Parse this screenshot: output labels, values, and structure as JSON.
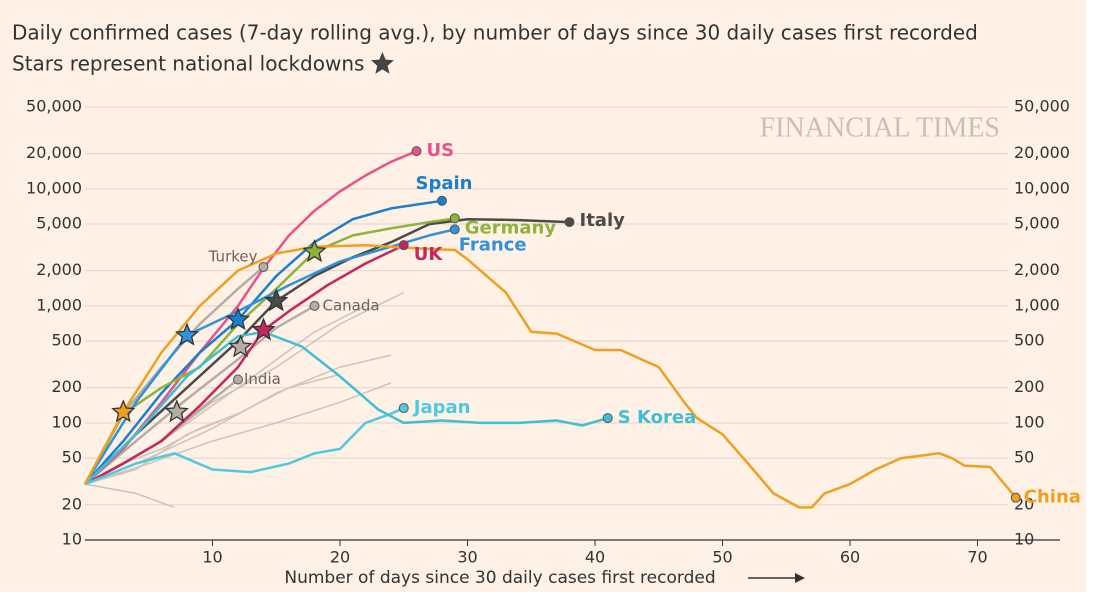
{
  "chart_data": {
    "type": "line",
    "title": "Daily confirmed cases (7-day rolling avg.), by number of days since 30 daily cases first recorded",
    "subtitle": "Stars represent national lockdowns",
    "watermark": "FINANCIAL TIMES",
    "x_label": "Number of days since 30 daily cases first recorded",
    "log_y": true,
    "grid": true,
    "xlim": [
      0,
      76
    ],
    "xticks": [
      10,
      20,
      30,
      40,
      50,
      60,
      70
    ],
    "ylim": [
      10,
      50000
    ],
    "yticks": [
      10,
      20,
      50,
      100,
      200,
      500,
      {
        "value": 1000,
        "label": "1,000"
      },
      {
        "value": 2000,
        "label": "2,000"
      },
      {
        "value": 5000,
        "label": "5,000"
      },
      {
        "value": 10000,
        "label": "10,000"
      },
      {
        "value": 20000,
        "label": "20,000"
      },
      {
        "value": 50000,
        "label": "50,000"
      }
    ],
    "background_series": [
      {
        "color": "#cdc3bb",
        "x": [
          0,
          5,
          10,
          15,
          20,
          25
        ],
        "values": [
          30,
          60,
          150,
          300,
          700,
          1300
        ]
      },
      {
        "color": "#cdc3bb",
        "x": [
          0,
          5,
          10,
          15,
          20,
          24
        ],
        "values": [
          30,
          50,
          90,
          180,
          300,
          380
        ]
      },
      {
        "color": "#cdc3bb",
        "x": [
          0,
          4,
          8,
          12,
          16,
          20
        ],
        "values": [
          30,
          40,
          80,
          120,
          200,
          260
        ]
      },
      {
        "color": "#cdc3bb",
        "x": [
          0,
          3,
          6,
          9,
          12
        ],
        "values": [
          30,
          45,
          60,
          90,
          120
        ]
      },
      {
        "color": "#cdc3bb",
        "x": [
          0,
          4,
          7
        ],
        "values": [
          30,
          25,
          19
        ]
      },
      {
        "color": "#cdc3bb",
        "x": [
          0,
          5,
          10,
          15,
          20,
          24
        ],
        "values": [
          30,
          45,
          70,
          100,
          150,
          220
        ]
      },
      {
        "color": "#cdc3bb",
        "x": [
          0,
          6,
          12,
          18,
          22
        ],
        "values": [
          30,
          70,
          200,
          600,
          1000
        ]
      }
    ],
    "series": [
      {
        "name": "US",
        "color": "#e8528a",
        "x": [
          0,
          3,
          6,
          9,
          12,
          14,
          16,
          18,
          20,
          22,
          24,
          26
        ],
        "values": [
          30,
          60,
          150,
          400,
          1000,
          2100,
          4000,
          6500,
          9500,
          13000,
          17000,
          21000
        ]
      },
      {
        "name": "Spain",
        "color": "#1a7fd0",
        "x": [
          0,
          3,
          6,
          9,
          12,
          15,
          18,
          21,
          24,
          28
        ],
        "values": [
          30,
          70,
          180,
          400,
          760,
          1800,
          3500,
          5500,
          6800,
          7900
        ]
      },
      {
        "name": "Italy",
        "color": "#4a4a4a",
        "x": [
          0,
          4,
          8,
          12,
          15,
          18,
          21,
          24,
          27,
          30,
          34,
          38
        ],
        "values": [
          30,
          80,
          200,
          500,
          1100,
          1800,
          2600,
          3500,
          5000,
          5500,
          5400,
          5200
        ]
      },
      {
        "name": "Germany",
        "color": "#8cb33b",
        "x": [
          0,
          3,
          6,
          9,
          12,
          15,
          18,
          21,
          24,
          27,
          29
        ],
        "values": [
          30,
          120,
          200,
          300,
          700,
          1400,
          2900,
          4000,
          4600,
          5200,
          5600
        ]
      },
      {
        "name": "France",
        "color": "#2e93dc",
        "x": [
          0,
          4,
          8,
          12,
          16,
          20,
          24,
          27,
          29
        ],
        "values": [
          30,
          150,
          560,
          900,
          1500,
          2400,
          3200,
          4000,
          4500
        ]
      },
      {
        "name": "UK",
        "color": "#c4275f",
        "x": [
          0,
          3,
          6,
          9,
          12,
          14,
          16,
          19,
          22,
          25
        ],
        "values": [
          30,
          45,
          70,
          140,
          300,
          620,
          900,
          1500,
          2300,
          3300
        ]
      },
      {
        "name": "Turkey",
        "color": "#b5aca5",
        "x": [
          0,
          3,
          6,
          9,
          12,
          14
        ],
        "values": [
          30,
          120,
          300,
          700,
          1400,
          2150
        ]
      },
      {
        "name": "Canada",
        "color": "#b5aca5",
        "x": [
          0,
          4,
          8,
          12,
          15,
          18
        ],
        "values": [
          30,
          70,
          160,
          350,
          650,
          1000
        ]
      },
      {
        "name": "India",
        "color": "#b5aca5",
        "x": [
          0,
          3,
          6,
          9,
          12
        ],
        "values": [
          30,
          45,
          70,
          130,
          235
        ]
      },
      {
        "name": "Japan",
        "color": "#4fc8e2",
        "x": [
          0,
          4,
          7,
          10,
          13,
          16,
          18,
          20,
          22,
          24,
          25
        ],
        "values": [
          30,
          45,
          55,
          40,
          38,
          45,
          55,
          60,
          100,
          120,
          134
        ]
      },
      {
        "name": "S Korea",
        "color": "#3ebfd6",
        "x": [
          0,
          4,
          8,
          12,
          14,
          17,
          20,
          23,
          25,
          28,
          31,
          34,
          37,
          39,
          41
        ],
        "values": [
          30,
          80,
          250,
          550,
          600,
          450,
          250,
          130,
          100,
          105,
          100,
          100,
          105,
          95,
          110
        ]
      },
      {
        "name": "China",
        "color": "#f0a020",
        "x": [
          0,
          3,
          6,
          9,
          12,
          15,
          18,
          22,
          26,
          29,
          30,
          33,
          35,
          37,
          40,
          42,
          45,
          47,
          48,
          50,
          52,
          54,
          56,
          57,
          58,
          60,
          62,
          64,
          67,
          68,
          69,
          71,
          73
        ],
        "values": [
          30,
          124,
          400,
          1000,
          2000,
          2800,
          3200,
          3300,
          3100,
          3000,
          2500,
          1300,
          600,
          580,
          420,
          420,
          300,
          150,
          110,
          80,
          45,
          25,
          19,
          19,
          25,
          30,
          40,
          50,
          55,
          50,
          43,
          42,
          23
        ]
      }
    ],
    "lockdowns": [
      {
        "x": 3,
        "y": 124,
        "color": "#f0a020"
      },
      {
        "x": 8,
        "y": 560,
        "color": "#2e93dc"
      },
      {
        "x": 7.2,
        "y": 124,
        "color": "#b5aca5"
      },
      {
        "x": 12,
        "y": 760,
        "color": "#1a7fd0"
      },
      {
        "x": 12.2,
        "y": 445,
        "color": "#b5aca5"
      },
      {
        "x": 14,
        "y": 620,
        "color": "#c4275f"
      },
      {
        "x": 15,
        "y": 1100,
        "color": "#4a4a4a"
      },
      {
        "x": 18,
        "y": 2900,
        "color": "#8cb33b"
      }
    ]
  }
}
